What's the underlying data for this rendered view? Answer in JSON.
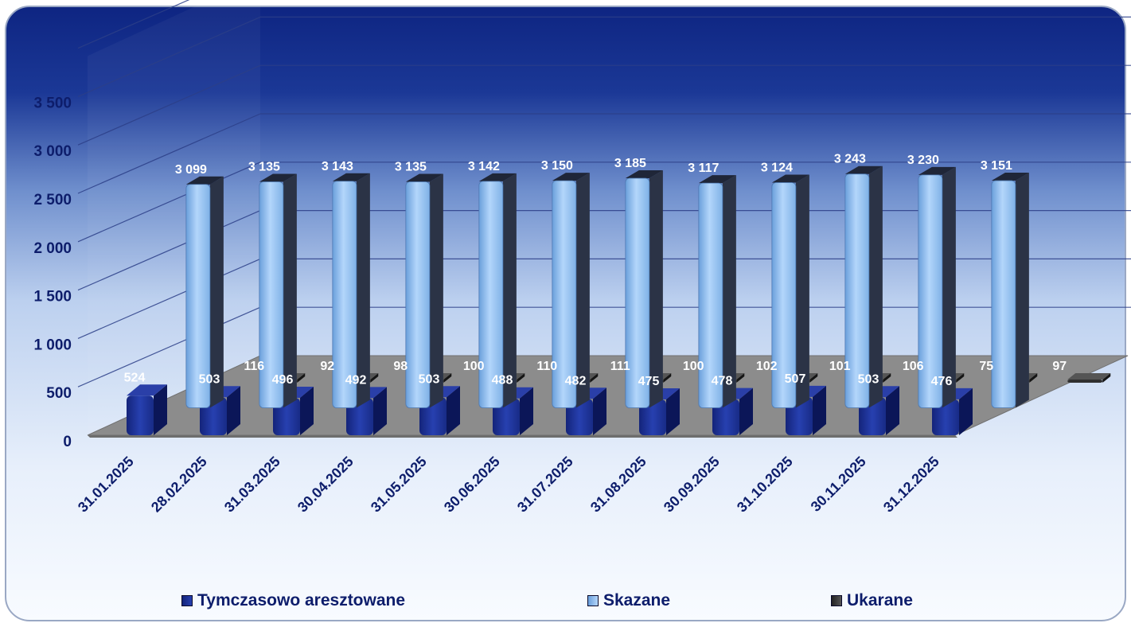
{
  "chart_data": {
    "type": "bar",
    "categories": [
      "31.01.2025",
      "28.02.2025",
      "31.03.2025",
      "30.04.2025",
      "31.05.2025",
      "30.06.2025",
      "31.07.2025",
      "31.08.2025",
      "30.09.2025",
      "31.10.2025",
      "30.11.2025",
      "31.12.2025"
    ],
    "series": [
      {
        "name": "Tymczasowo aresztowane",
        "values": [
          524,
          503,
          496,
          492,
          503,
          488,
          482,
          475,
          478,
          507,
          503,
          476
        ],
        "labels": [
          "524",
          "503",
          "496",
          "492",
          "503",
          "488",
          "482",
          "475",
          "478",
          "507",
          "503",
          "476"
        ],
        "color": "#1c2f8f"
      },
      {
        "name": "Skazane",
        "values": [
          3099,
          3135,
          3143,
          3135,
          3142,
          3150,
          3185,
          3117,
          3124,
          3243,
          3230,
          3151
        ],
        "labels": [
          "3 099",
          "3 135",
          "3 143",
          "3 135",
          "3 142",
          "3 150",
          "3 185",
          "3 117",
          "3 124",
          "3 243",
          "3 230",
          "3 151"
        ],
        "color": "#8fbfec"
      },
      {
        "name": "Ukarane",
        "values": [
          116,
          92,
          98,
          100,
          110,
          111,
          100,
          102,
          101,
          106,
          75,
          97
        ],
        "labels": [
          "116",
          "92",
          "98",
          "100",
          "110",
          "111",
          "100",
          "102",
          "101",
          "106",
          "75",
          "97"
        ],
        "color": "#3a3a3a"
      }
    ],
    "yticks": [
      0,
      500,
      1000,
      1500,
      2000,
      2500,
      3000,
      3500
    ],
    "ytick_labels": [
      "0",
      "500",
      "1 000",
      "1 500",
      "2 000",
      "2 500",
      "3 000",
      "3 500"
    ],
    "ylim": [
      0,
      3500
    ],
    "grid": true,
    "legend_position": "bottom",
    "title": "",
    "xlabel": "",
    "ylabel": ""
  },
  "colors": {
    "axis_text": "#0d1d6b",
    "label_text": "#ffffff",
    "floor": "#8a8a8a",
    "header_dark": "#0f2a83"
  }
}
